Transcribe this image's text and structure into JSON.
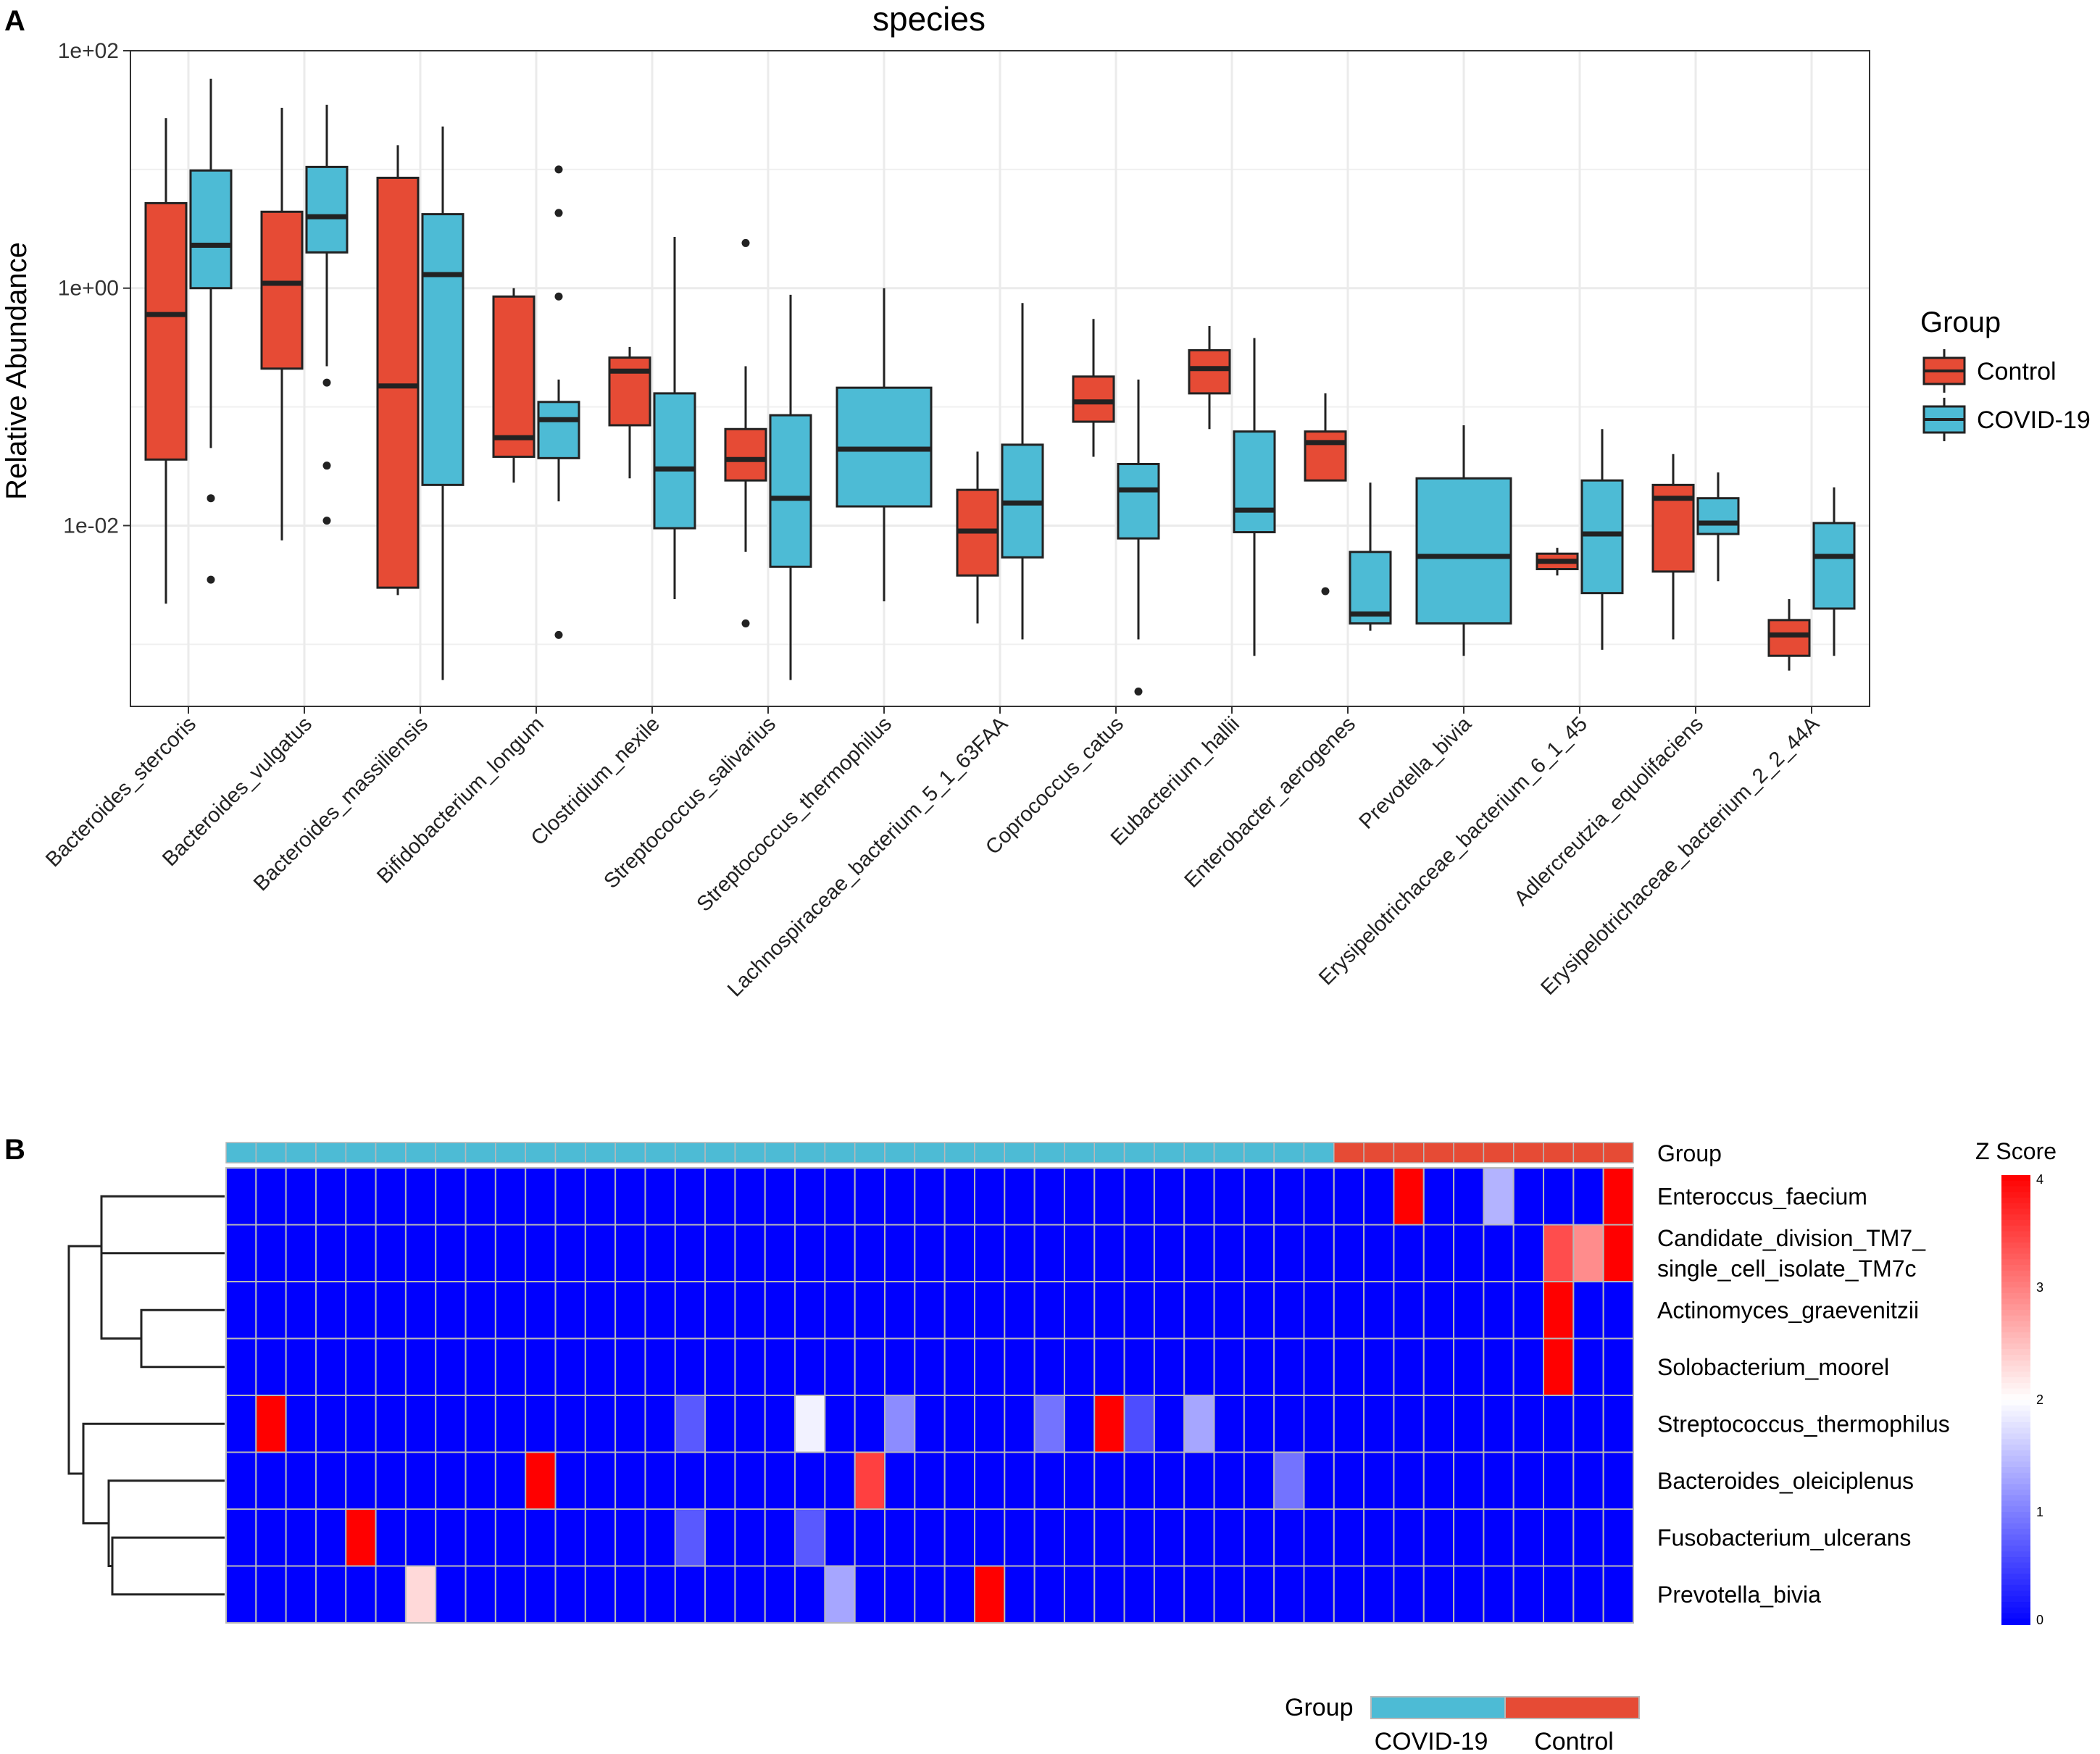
{
  "panel_a_label": "A",
  "panel_b_label": "B",
  "chart_data": [
    {
      "type": "box",
      "title": "species",
      "ylabel": "Relative Abundance",
      "xlabel": "",
      "yscale": "log10",
      "ylim": [
        0.0003,
        100
      ],
      "yticks": [
        "1e-02",
        "1e+00",
        "1e+02"
      ],
      "ytick_values": [
        0.01,
        1,
        100
      ],
      "legend": {
        "title": "Group",
        "position": "right",
        "entries": [
          {
            "name": "Control",
            "color": "#e64b35"
          },
          {
            "name": "COVID-19",
            "color": "#4dbbd5"
          }
        ]
      },
      "categories": [
        "Bacteroides_stercoris",
        "Bacteroides_vulgatus",
        "Bacteroides_massiliensis",
        "Bifidobacterium_longum",
        "Clostridium_nexile",
        "Streptococcus_salivarius",
        "Streptococcus_thermophilus",
        "Lachnospiraceae_bacterium_5_1_63FAA",
        "Coprococcus_catus",
        "Eubacterium_hallii",
        "Enterobacter_aerogenes",
        "Prevotella_bivia",
        "Erysipelotrichaceae_bacterium_6_1_45",
        "Adlercreutzia_equolifaciens",
        "Erysipelotrichaceae_bacterium_2_2_44A"
      ],
      "series": [
        {
          "name": "Control",
          "boxes": [
            {
              "min": 0.0022,
              "q1": 0.036,
              "median": 0.6,
              "q3": 5.2,
              "max": 27,
              "outliers": []
            },
            {
              "min": 0.0075,
              "q1": 0.21,
              "median": 1.1,
              "q3": 4.4,
              "max": 33,
              "outliers": []
            },
            {
              "min": 0.0026,
              "q1": 0.003,
              "median": 0.15,
              "q3": 8.5,
              "max": 16,
              "outliers": []
            },
            {
              "min": 0.023,
              "q1": 0.038,
              "median": 0.055,
              "q3": 0.85,
              "max": 1,
              "outliers": []
            },
            {
              "min": 0.025,
              "q1": 0.07,
              "median": 0.2,
              "q3": 0.26,
              "max": 0.32,
              "outliers": []
            },
            {
              "min": 0.006,
              "q1": 0.024,
              "median": 0.036,
              "q3": 0.065,
              "max": 0.22,
              "outliers": [
                2.4,
                0.0015
              ]
            },
            null,
            {
              "min": 0.0015,
              "q1": 0.0038,
              "median": 0.009,
              "q3": 0.02,
              "max": 0.042,
              "outliers": []
            },
            {
              "min": 0.038,
              "q1": 0.075,
              "median": 0.11,
              "q3": 0.18,
              "max": 0.55,
              "outliers": []
            },
            {
              "min": 0.065,
              "q1": 0.13,
              "median": 0.21,
              "q3": 0.3,
              "max": 0.48,
              "outliers": []
            },
            {
              "min": 0.024,
              "q1": 0.024,
              "median": 0.05,
              "q3": 0.062,
              "max": 0.13,
              "outliers": [
                0.0028
              ]
            },
            null,
            {
              "min": 0.0038,
              "q1": 0.0043,
              "median": 0.005,
              "q3": 0.0058,
              "max": 0.0065,
              "outliers": []
            },
            {
              "min": 0.0011,
              "q1": 0.0041,
              "median": 0.017,
              "q3": 0.022,
              "max": 0.04,
              "outliers": []
            },
            {
              "min": 0.0006,
              "q1": 0.0008,
              "median": 0.0012,
              "q3": 0.0016,
              "max": 0.0024,
              "outliers": []
            }
          ]
        },
        {
          "name": "COVID-19",
          "boxes": [
            {
              "min": 0.045,
              "q1": 1.0,
              "median": 2.3,
              "q3": 9.8,
              "max": 58,
              "outliers": [
                0.017,
                0.0035
              ]
            },
            {
              "min": 0.22,
              "q1": 2.0,
              "median": 4.0,
              "q3": 10.5,
              "max": 35,
              "outliers": [
                0.16,
                0.032,
                0.011
              ]
            },
            {
              "min": 0.0005,
              "q1": 0.022,
              "median": 1.3,
              "q3": 4.2,
              "max": 23,
              "outliers": []
            },
            {
              "min": 0.016,
              "q1": 0.037,
              "median": 0.078,
              "q3": 0.11,
              "max": 0.17,
              "outliers": [
                10,
                4.3,
                0.85,
                0.0012
              ]
            },
            {
              "min": 0.0024,
              "q1": 0.0095,
              "median": 0.03,
              "q3": 0.13,
              "max": 2.7,
              "outliers": []
            },
            {
              "min": 0.0005,
              "q1": 0.0045,
              "median": 0.017,
              "q3": 0.085,
              "max": 0.88,
              "outliers": []
            },
            {
              "min": 0.0023,
              "q1": 0.0145,
              "median": 0.044,
              "q3": 0.145,
              "max": 1.0,
              "outliers": []
            },
            {
              "min": 0.0011,
              "q1": 0.0054,
              "median": 0.0155,
              "q3": 0.048,
              "max": 0.75,
              "outliers": []
            },
            {
              "min": 0.0011,
              "q1": 0.0078,
              "median": 0.02,
              "q3": 0.033,
              "max": 0.17,
              "outliers": [
                0.0004
              ]
            },
            {
              "min": 0.0008,
              "q1": 0.0088,
              "median": 0.0135,
              "q3": 0.062,
              "max": 0.38,
              "outliers": []
            },
            {
              "min": 0.0013,
              "q1": 0.0015,
              "median": 0.0018,
              "q3": 0.006,
              "max": 0.023,
              "outliers": []
            },
            {
              "min": 0.0008,
              "q1": 0.0015,
              "median": 0.0055,
              "q3": 0.025,
              "max": 0.07,
              "outliers": []
            },
            {
              "min": 0.0009,
              "q1": 0.0027,
              "median": 0.0085,
              "q3": 0.024,
              "max": 0.065,
              "outliers": []
            },
            {
              "min": 0.0034,
              "q1": 0.0085,
              "median": 0.0105,
              "q3": 0.017,
              "max": 0.028,
              "outliers": []
            },
            {
              "min": 0.0008,
              "q1": 0.002,
              "median": 0.0055,
              "q3": 0.0105,
              "max": 0.021,
              "outliers": []
            }
          ]
        }
      ]
    },
    {
      "type": "heatmap",
      "group_label": "Group",
      "colorbar_title": "Z Score",
      "colorbar_ticks": [
        "0",
        "1",
        "2",
        "3",
        "4"
      ],
      "colorbar_tick_values": [
        0,
        1,
        2,
        3,
        4
      ],
      "zlim": [
        0,
        4
      ],
      "colors": {
        "low": "#0000ff",
        "mid": "#ffffff",
        "high": "#ff0000",
        "grid": "#b8b8b8"
      },
      "n_columns": 47,
      "column_groups": [
        {
          "name": "COVID-19",
          "count": 37,
          "color": "#4dbbd5"
        },
        {
          "name": "Control",
          "count": 10,
          "color": "#e64b35"
        }
      ],
      "legend": {
        "title": "Group",
        "entries": [
          "COVID-19",
          "Control"
        ],
        "position": "bottom-right"
      },
      "rows": [
        {
          "name": "Enteroccus_faecium",
          "cells": [
            [
              39,
              4.0
            ],
            [
              42,
              1.4
            ],
            [
              46,
              4.0
            ]
          ]
        },
        {
          "name": "Candidate_division_TM7_single_cell_isolate_TM7c",
          "label_lines": [
            "Candidate_division_TM7_",
            "single_cell_isolate_TM7c"
          ],
          "cells": [
            [
              44,
              3.4
            ],
            [
              45,
              2.9
            ],
            [
              46,
              4.0
            ]
          ]
        },
        {
          "name": "Actinomyces_graevenitzii",
          "cells": [
            [
              44,
              4.0
            ]
          ]
        },
        {
          "name": "Solobacterium_moorel",
          "cells": [
            [
              44,
              4.0
            ]
          ]
        },
        {
          "name": "Streptococcus_thermophilus",
          "cells": [
            [
              1,
              4.0
            ],
            [
              15,
              0.7
            ],
            [
              19,
              1.9
            ],
            [
              22,
              1.1
            ],
            [
              27,
              0.9
            ],
            [
              29,
              4.0
            ],
            [
              30,
              0.6
            ],
            [
              32,
              1.3
            ]
          ]
        },
        {
          "name": "Bacteroides_oleiciplenus",
          "cells": [
            [
              10,
              4.0
            ],
            [
              21,
              3.5
            ],
            [
              35,
              0.9
            ]
          ]
        },
        {
          "name": "Fusobacterium_ulcerans",
          "cells": [
            [
              4,
              4.0
            ],
            [
              15,
              0.7
            ],
            [
              19,
              0.7
            ]
          ]
        },
        {
          "name": "Prevotella_bivia",
          "cells": [
            [
              6,
              2.3
            ],
            [
              20,
              1.3
            ],
            [
              25,
              4.0
            ]
          ]
        }
      ],
      "dendrogram": "rows"
    }
  ]
}
